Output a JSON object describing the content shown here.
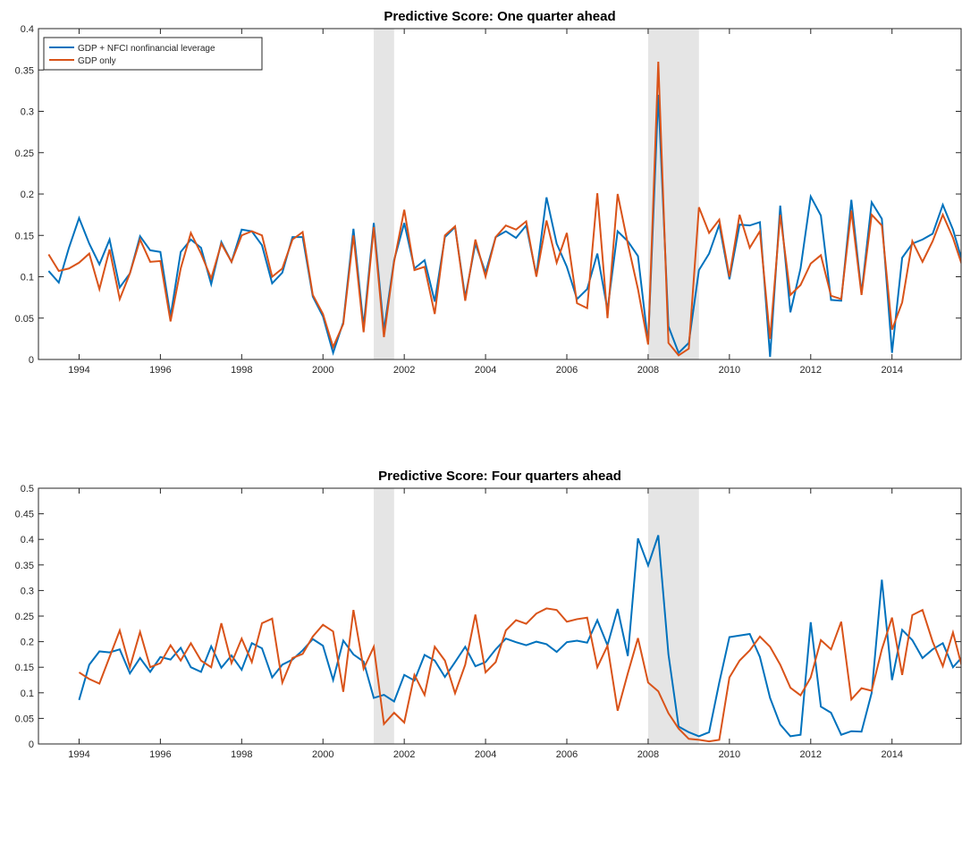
{
  "chart_data": [
    {
      "type": "line",
      "title": "Predictive Score: One quarter ahead",
      "xlim": [
        1993,
        2015.7
      ],
      "xticks": [
        1994,
        1996,
        1998,
        2000,
        2002,
        2004,
        2006,
        2008,
        2010,
        2012,
        2014
      ],
      "ylim": [
        0,
        0.4
      ],
      "yticks": [
        0,
        0.05,
        0.1,
        0.15,
        0.2,
        0.25,
        0.3,
        0.35,
        0.4
      ],
      "legend": "upper left",
      "shading_color": "#e5e5e5",
      "shading": [
        [
          2001.25,
          2001.75
        ],
        [
          2008,
          2009.25
        ]
      ],
      "x": [
        1993.25,
        1993.5,
        1993.75,
        1994,
        1994.25,
        1994.5,
        1994.75,
        1995,
        1995.25,
        1995.5,
        1995.75,
        1996,
        1996.25,
        1996.5,
        1996.75,
        1997,
        1997.25,
        1997.5,
        1997.75,
        1998,
        1998.25,
        1998.5,
        1998.75,
        1999,
        1999.25,
        1999.5,
        1999.75,
        2000,
        2000.25,
        2000.5,
        2000.75,
        2001,
        2001.25,
        2001.5,
        2001.75,
        2002,
        2002.25,
        2002.5,
        2002.75,
        2003,
        2003.25,
        2003.5,
        2003.75,
        2004,
        2004.25,
        2004.5,
        2004.75,
        2005,
        2005.25,
        2005.5,
        2005.75,
        2006,
        2006.25,
        2006.5,
        2006.75,
        2007,
        2007.25,
        2007.5,
        2007.75,
        2008,
        2008.25,
        2008.5,
        2008.75,
        2009,
        2009.25,
        2009.5,
        2009.75,
        2010,
        2010.25,
        2010.5,
        2010.75,
        2011,
        2011.25,
        2011.5,
        2011.75,
        2012,
        2012.25,
        2012.5,
        2012.75,
        2013,
        2013.25,
        2013.5,
        2013.75,
        2014,
        2014.25,
        2014.5,
        2014.75,
        2015,
        2015.25,
        2015.5,
        2015.75
      ],
      "series": [
        {
          "name": "GDP + NFCI nonfinancial leverage",
          "color": "#0072BD",
          "values": [
            0.107,
            0.093,
            0.135,
            0.171,
            0.14,
            0.115,
            0.145,
            0.087,
            0.104,
            0.149,
            0.132,
            0.13,
            0.052,
            0.13,
            0.145,
            0.135,
            0.091,
            0.142,
            0.118,
            0.157,
            0.155,
            0.138,
            0.092,
            0.105,
            0.148,
            0.148,
            0.076,
            0.052,
            0.008,
            0.045,
            0.158,
            0.04,
            0.165,
            0.035,
            0.12,
            0.165,
            0.11,
            0.12,
            0.07,
            0.148,
            0.16,
            0.075,
            0.14,
            0.105,
            0.148,
            0.155,
            0.147,
            0.162,
            0.102,
            0.196,
            0.14,
            0.112,
            0.073,
            0.085,
            0.128,
            0.06,
            0.155,
            0.143,
            0.125,
            0.02,
            0.32,
            0.04,
            0.008,
            0.02,
            0.108,
            0.128,
            0.163,
            0.097,
            0.163,
            0.162,
            0.166,
            0.003,
            0.186,
            0.057,
            0.11,
            0.197,
            0.174,
            0.072,
            0.071,
            0.193,
            0.08,
            0.19,
            0.17,
            0.008,
            0.123,
            0.14,
            0.145,
            0.152,
            0.187,
            0.157,
            0.115
          ]
        },
        {
          "name": "GDP only",
          "color": "#D95319",
          "values": [
            0.127,
            0.107,
            0.11,
            0.117,
            0.128,
            0.085,
            0.133,
            0.073,
            0.104,
            0.145,
            0.118,
            0.119,
            0.046,
            0.11,
            0.153,
            0.128,
            0.098,
            0.14,
            0.118,
            0.15,
            0.155,
            0.15,
            0.1,
            0.11,
            0.145,
            0.154,
            0.078,
            0.055,
            0.015,
            0.043,
            0.15,
            0.033,
            0.16,
            0.027,
            0.118,
            0.181,
            0.108,
            0.112,
            0.055,
            0.15,
            0.161,
            0.071,
            0.145,
            0.1,
            0.148,
            0.162,
            0.157,
            0.167,
            0.1,
            0.168,
            0.117,
            0.153,
            0.068,
            0.062,
            0.201,
            0.05,
            0.2,
            0.14,
            0.085,
            0.018,
            0.36,
            0.02,
            0.005,
            0.013,
            0.184,
            0.153,
            0.169,
            0.1,
            0.175,
            0.135,
            0.155,
            0.025,
            0.175,
            0.078,
            0.09,
            0.116,
            0.126,
            0.077,
            0.073,
            0.18,
            0.078,
            0.175,
            0.162,
            0.036,
            0.069,
            0.143,
            0.118,
            0.143,
            0.175,
            0.147,
            0.11
          ]
        }
      ]
    },
    {
      "type": "line",
      "title": "Predictive Score: Four quarters ahead",
      "xlim": [
        1993,
        2015.7
      ],
      "xticks": [
        1994,
        1996,
        1998,
        2000,
        2002,
        2004,
        2006,
        2008,
        2010,
        2012,
        2014
      ],
      "ylim": [
        0,
        0.5
      ],
      "yticks": [
        0,
        0.05,
        0.1,
        0.15,
        0.2,
        0.25,
        0.3,
        0.35,
        0.4,
        0.45,
        0.5
      ],
      "shading_color": "#e5e5e5",
      "shading": [
        [
          2001.25,
          2001.75
        ],
        [
          2008,
          2009.25
        ]
      ],
      "x": [
        1994,
        1994.25,
        1994.5,
        1994.75,
        1995,
        1995.25,
        1995.5,
        1995.75,
        1996,
        1996.25,
        1996.5,
        1996.75,
        1997,
        1997.25,
        1997.5,
        1997.75,
        1998,
        1998.25,
        1998.5,
        1998.75,
        1999,
        1999.25,
        1999.5,
        1999.75,
        2000,
        2000.25,
        2000.5,
        2000.75,
        2001,
        2001.25,
        2001.5,
        2001.75,
        2002,
        2002.25,
        2002.5,
        2002.75,
        2003,
        2003.25,
        2003.5,
        2003.75,
        2004,
        2004.25,
        2004.5,
        2004.75,
        2005,
        2005.25,
        2005.5,
        2005.75,
        2006,
        2006.25,
        2006.5,
        2006.75,
        2007,
        2007.25,
        2007.5,
        2007.75,
        2008,
        2008.25,
        2008.5,
        2008.75,
        2009,
        2009.25,
        2009.5,
        2009.75,
        2010,
        2010.25,
        2010.5,
        2010.75,
        2011,
        2011.25,
        2011.5,
        2011.75,
        2012,
        2012.25,
        2012.5,
        2012.75,
        2013,
        2013.25,
        2013.5,
        2013.75,
        2014,
        2014.25,
        2014.5,
        2014.75,
        2015,
        2015.25,
        2015.5,
        2015.75
      ],
      "series": [
        {
          "color": "#0072BD",
          "values": [
            0.086,
            0.155,
            0.181,
            0.179,
            0.185,
            0.138,
            0.168,
            0.141,
            0.17,
            0.165,
            0.188,
            0.15,
            0.141,
            0.191,
            0.149,
            0.173,
            0.145,
            0.197,
            0.187,
            0.13,
            0.155,
            0.165,
            0.183,
            0.205,
            0.192,
            0.125,
            0.202,
            0.175,
            0.161,
            0.09,
            0.096,
            0.083,
            0.135,
            0.124,
            0.174,
            0.163,
            0.131,
            0.16,
            0.19,
            0.152,
            0.16,
            0.185,
            0.206,
            0.199,
            0.193,
            0.2,
            0.195,
            0.18,
            0.199,
            0.202,
            0.198,
            0.242,
            0.193,
            0.264,
            0.172,
            0.402,
            0.349,
            0.408,
            0.175,
            0.034,
            0.023,
            0.015,
            0.023,
            0.12,
            0.209,
            0.212,
            0.215,
            0.17,
            0.09,
            0.038,
            0.015,
            0.018,
            0.238,
            0.073,
            0.061,
            0.018,
            0.025,
            0.024,
            0.1,
            0.321,
            0.125,
            0.223,
            0.203,
            0.168,
            0.185,
            0.197,
            0.15,
            0.172
          ]
        },
        {
          "color": "#D95319",
          "values": [
            0.14,
            0.127,
            0.118,
            0.17,
            0.222,
            0.15,
            0.219,
            0.15,
            0.158,
            0.193,
            0.163,
            0.197,
            0.163,
            0.15,
            0.236,
            0.158,
            0.206,
            0.16,
            0.236,
            0.245,
            0.12,
            0.168,
            0.176,
            0.21,
            0.233,
            0.22,
            0.102,
            0.262,
            0.147,
            0.19,
            0.039,
            0.061,
            0.042,
            0.135,
            0.096,
            0.19,
            0.163,
            0.099,
            0.155,
            0.253,
            0.14,
            0.16,
            0.222,
            0.242,
            0.235,
            0.255,
            0.265,
            0.262,
            0.239,
            0.244,
            0.247,
            0.15,
            0.192,
            0.065,
            0.138,
            0.207,
            0.12,
            0.103,
            0.06,
            0.03,
            0.01,
            0.008,
            0.005,
            0.008,
            0.13,
            0.163,
            0.183,
            0.21,
            0.19,
            0.155,
            0.11,
            0.095,
            0.13,
            0.203,
            0.185,
            0.239,
            0.087,
            0.109,
            0.104,
            0.185,
            0.247,
            0.135,
            0.252,
            0.262,
            0.2,
            0.152,
            0.218,
            0.142
          ]
        }
      ]
    }
  ]
}
